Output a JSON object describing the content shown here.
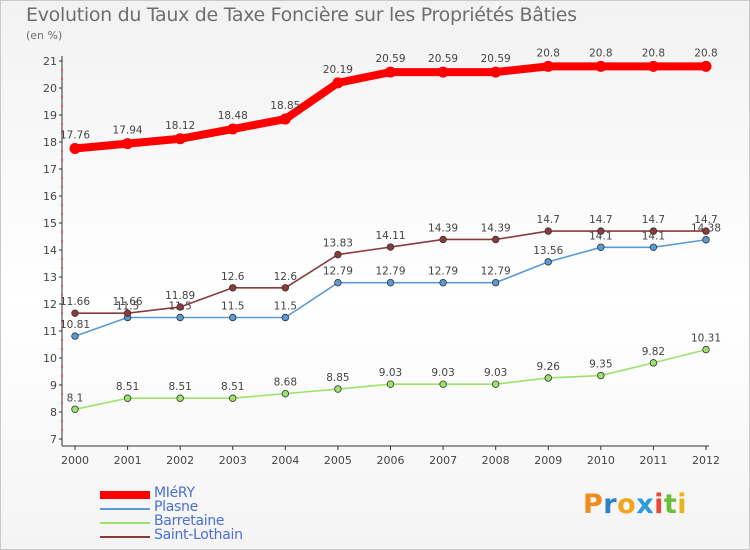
{
  "header": {
    "title": "Evolution du Taux de Taxe Foncière sur les Propriétés Bâties",
    "unit": "(en %)"
  },
  "logo": {
    "letters": [
      "P",
      "r",
      "o",
      "x",
      "i",
      "t",
      "i"
    ],
    "colors": [
      "#f08c1e",
      "#2c7fc9",
      "#f2a51c",
      "#2c9bd9",
      "#e84a3c",
      "#6cbf3a",
      "#e8b51c"
    ]
  },
  "chart_data": {
    "type": "line",
    "title": "Evolution du Taux de Taxe Foncière sur les Propriétés Bâties",
    "ylabel": "(en %)",
    "xlabel": "",
    "x": [
      "2000",
      "2001",
      "2002",
      "2003",
      "2004",
      "2005",
      "2006",
      "2007",
      "2008",
      "2009",
      "2010",
      "2011",
      "2012"
    ],
    "ylim": [
      7,
      21
    ],
    "yticks": [
      7,
      8,
      9,
      10,
      11,
      12,
      13,
      14,
      15,
      16,
      17,
      18,
      19,
      20,
      21
    ],
    "grid": false,
    "legend_position": "bottom-left",
    "series": [
      {
        "name": "MIéRY",
        "color": "#ff0000",
        "values": [
          17.76,
          17.94,
          18.12,
          18.48,
          18.85,
          20.19,
          20.59,
          20.59,
          20.59,
          20.8,
          20.8,
          20.8,
          20.8
        ],
        "labels": [
          "17.76",
          "17.94",
          "18.12",
          "18.48",
          "18.85",
          "20.19",
          "20.59",
          "20.59",
          "20.59",
          "20.8",
          "20.8",
          "20.8",
          "20.8"
        ]
      },
      {
        "name": "Plasne",
        "color": "#5a9bd5",
        "values": [
          10.81,
          11.5,
          11.5,
          11.5,
          11.5,
          12.79,
          12.79,
          12.79,
          12.79,
          13.56,
          14.1,
          14.1,
          14.38
        ],
        "labels": [
          "10.81",
          "11.5",
          "11.5",
          "11.5",
          "11.5",
          "12.79",
          "12.79",
          "12.79",
          "12.79",
          "13.56",
          "14.1",
          "14.1",
          "14.38"
        ]
      },
      {
        "name": "Barretaine",
        "color": "#9be36b",
        "values": [
          8.1,
          8.51,
          8.51,
          8.51,
          8.68,
          8.85,
          9.03,
          9.03,
          9.03,
          9.26,
          9.35,
          9.82,
          10.31
        ],
        "labels": [
          "8.1",
          "8.51",
          "8.51",
          "8.51",
          "8.68",
          "8.85",
          "9.03",
          "9.03",
          "9.03",
          "9.26",
          "9.35",
          "9.82",
          "10.31"
        ]
      },
      {
        "name": "Saint-Lothain",
        "color": "#8b3b3b",
        "values": [
          11.66,
          11.66,
          11.89,
          12.6,
          12.6,
          13.83,
          14.11,
          14.39,
          14.39,
          14.7,
          14.7,
          14.7,
          14.7
        ],
        "labels": [
          "11.66",
          "11.66",
          "11.89",
          "12.6",
          "12.6",
          "13.83",
          "14.11",
          "14.39",
          "14.39",
          "14.7",
          "14.7",
          "14.7",
          "14.7"
        ]
      }
    ]
  }
}
